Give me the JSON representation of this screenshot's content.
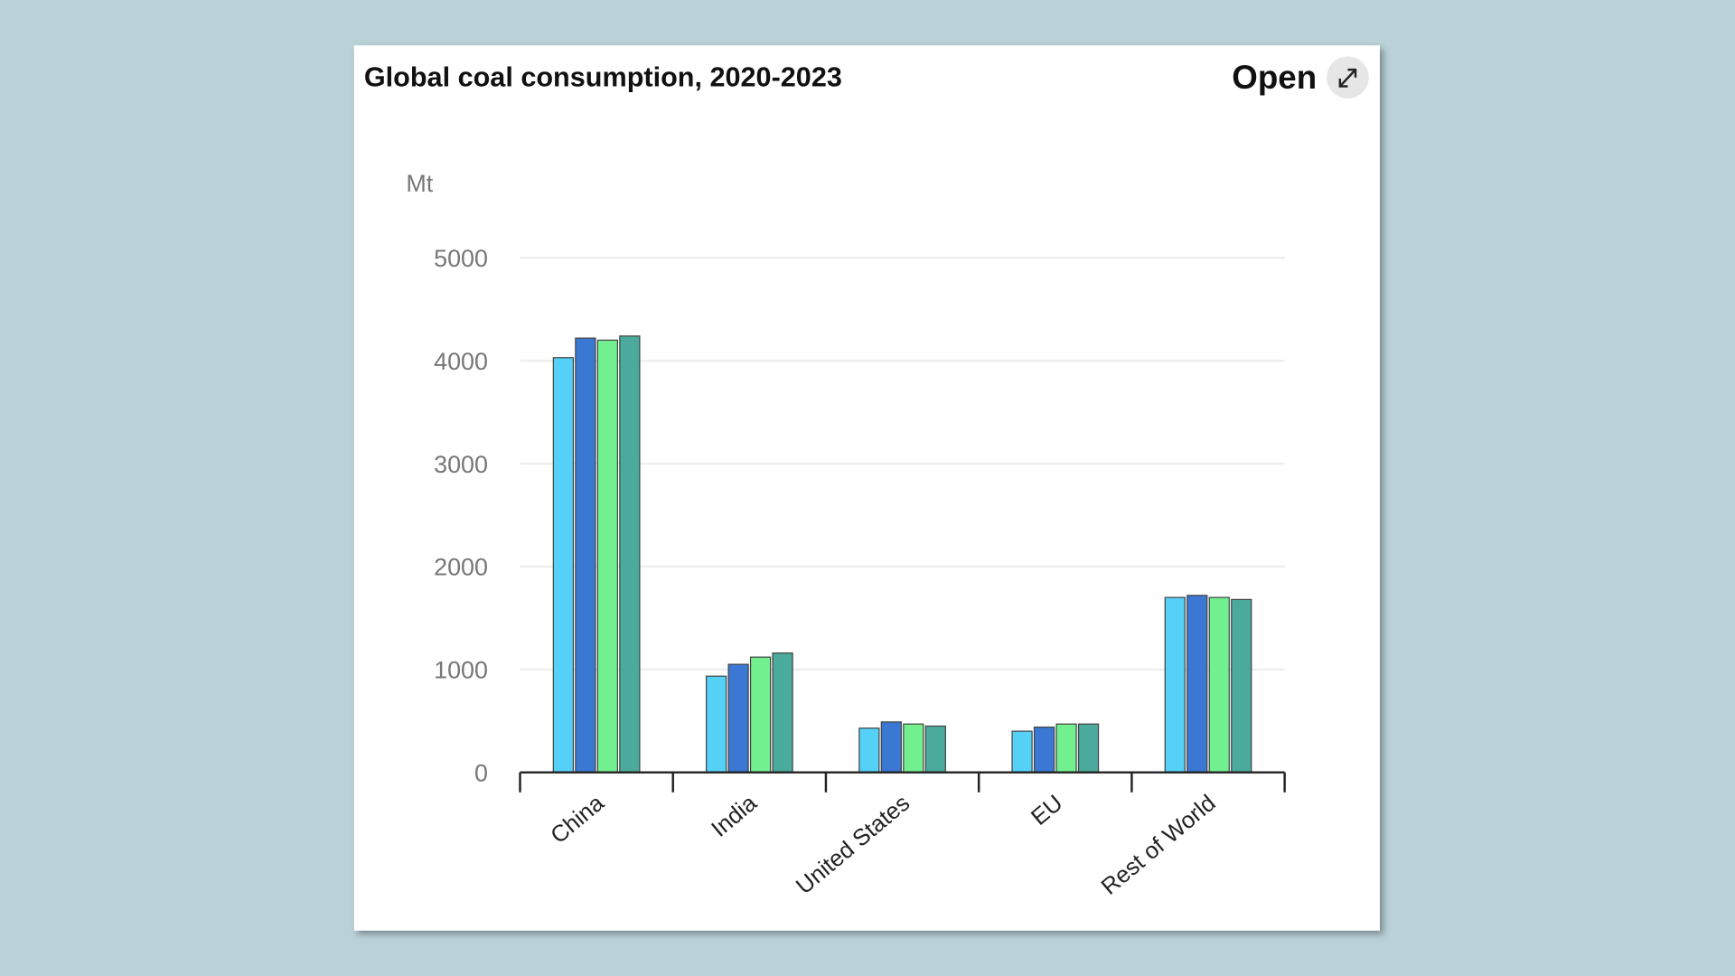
{
  "chart_data": {
    "type": "bar",
    "title": "Global coal consumption, 2020-2023",
    "ylabel": "Mt",
    "xlabel": "",
    "ylim": [
      0,
      5000
    ],
    "yticks": [
      "0",
      "1000",
      "2000",
      "3000",
      "4000",
      "5000"
    ],
    "grid": true,
    "categories": [
      "China",
      "India",
      "United States",
      "EU",
      "Rest of World"
    ],
    "series": [
      {
        "color": "#55d0f7",
        "values": [
          4030,
          935,
          430,
          400,
          1700
        ]
      },
      {
        "color": "#3b78d4",
        "values": [
          4220,
          1050,
          490,
          440,
          1720
        ]
      },
      {
        "color": "#72f08f",
        "values": [
          4200,
          1120,
          470,
          470,
          1700
        ]
      },
      {
        "color": "#4aaa9b",
        "values": [
          4240,
          1160,
          450,
          470,
          1680
        ]
      }
    ]
  },
  "header": {
    "open_label": "Open",
    "expand_icon": "expand-arrows-icon"
  }
}
